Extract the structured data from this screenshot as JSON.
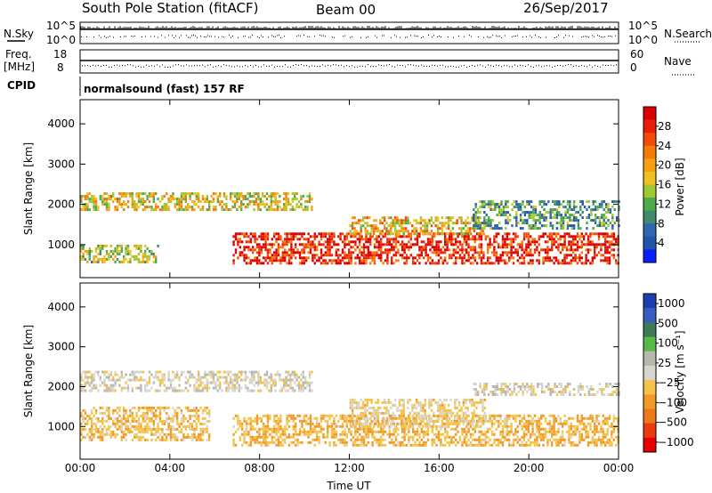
{
  "header": {
    "station": "South Pole Station (fitACF)",
    "beam": "Beam 00",
    "date": "26/Sep/2017"
  },
  "strip_panels": {
    "nsky_label": "N.Sky",
    "nsky_ticks": [
      "10^5",
      "10^0"
    ],
    "nsearch_label": "N.Search",
    "nsearch_ticks": [
      "10^5",
      "10^0"
    ],
    "freq_label": "Freq.",
    "freq_unit": "[MHz]",
    "freq_ticks": [
      "18",
      "8"
    ],
    "nave_label": "Nave",
    "nave_ticks": [
      "60",
      "0"
    ],
    "cpid_label": "CPID",
    "cpid_text": "normalsound (fast) 157 RF"
  },
  "colors": {
    "power": [
      "#0a1eff",
      "#2255a8",
      "#2f66b0",
      "#3f8a6a",
      "#4faa4a",
      "#a0c830",
      "#f0c020",
      "#f5a010",
      "#f57a0a",
      "#f24a08",
      "#e81e08",
      "#dc0000"
    ],
    "velocity": [
      "#1b3fb0",
      "#3a5cc0",
      "#3d7a55",
      "#58b848",
      "#b8b8b0",
      "#d6d6ce",
      "#f3c34a",
      "#f19a2a",
      "#ec7a1a",
      "#ea3a10",
      "#e60000"
    ]
  },
  "chart_data": [
    {
      "type": "heatmap",
      "name": "power",
      "title": "",
      "xlabel": "Time UT",
      "ylabel": "Slant Range [km]",
      "xlim": [
        0,
        24
      ],
      "ylim": [
        180,
        4600
      ],
      "x_ticks": [
        "00:00",
        "04:00",
        "08:00",
        "12:00",
        "16:00",
        "20:00",
        "00:00"
      ],
      "y_ticks": [
        1000,
        2000,
        3000,
        4000
      ],
      "colorbar": {
        "label": "Power [dB]",
        "range": [
          0,
          32
        ],
        "ticks": [
          4,
          8,
          12,
          16,
          20,
          24,
          28
        ]
      },
      "regions": [
        {
          "t0": 0.0,
          "t1": 3.5,
          "r0": 600,
          "r1": 1000,
          "level": 0.45
        },
        {
          "t0": 0.0,
          "t1": 10.3,
          "r0": 1900,
          "r1": 2300,
          "level": 0.55
        },
        {
          "t0": 6.8,
          "t1": 24.0,
          "r0": 550,
          "r1": 1300,
          "level": 0.92
        },
        {
          "t0": 12.0,
          "t1": 18.0,
          "r0": 1300,
          "r1": 1700,
          "level": 0.6
        },
        {
          "t0": 17.5,
          "t1": 24.0,
          "r0": 1400,
          "r1": 2100,
          "level": 0.3
        }
      ]
    },
    {
      "type": "heatmap",
      "name": "velocity",
      "title": "",
      "xlabel": "Time UT",
      "ylabel": "Slant Range [km]",
      "xlim": [
        0,
        24
      ],
      "ylim": [
        180,
        4600
      ],
      "x_ticks": [
        "00:00",
        "04:00",
        "08:00",
        "12:00",
        "16:00",
        "20:00",
        "00:00"
      ],
      "y_ticks": [
        1000,
        2000,
        3000,
        4000
      ],
      "colorbar": {
        "label": "Velocity [m s⁻¹]",
        "range": [
          -1250,
          1250
        ],
        "ticks": [
          "1000",
          "500",
          "100",
          "25",
          "−25",
          "−100",
          "−500",
          "−1000"
        ]
      },
      "regions": [
        {
          "t0": 0.0,
          "t1": 5.8,
          "r0": 650,
          "r1": 1500,
          "level": -300
        },
        {
          "t0": 0.0,
          "t1": 10.3,
          "r0": 1900,
          "r1": 2400,
          "level": 10
        },
        {
          "t0": 6.8,
          "t1": 24.0,
          "r0": 500,
          "r1": 1300,
          "level": -350
        },
        {
          "t0": 12.0,
          "t1": 18.0,
          "r0": 1000,
          "r1": 1700,
          "level": -150
        },
        {
          "t0": 17.5,
          "t1": 24.0,
          "r0": 1800,
          "r1": 2100,
          "level": 10
        }
      ]
    }
  ]
}
